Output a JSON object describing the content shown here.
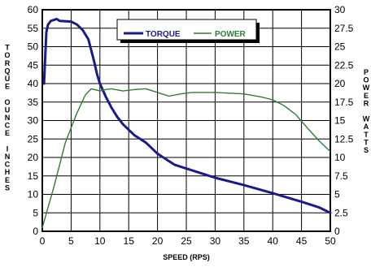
{
  "chart_data": {
    "type": "line",
    "title": "",
    "xlabel": "SPEED (RPS)",
    "ylabel_left": "TORQUE OUNCE INCHES",
    "ylabel_right": "POWER WATTS",
    "xlim": [
      0,
      50
    ],
    "ylim_left": [
      0,
      60
    ],
    "ylim_right": [
      0,
      30
    ],
    "x_ticks": [
      "0",
      "5",
      "10",
      "15",
      "20",
      "25",
      "30",
      "35",
      "40",
      "45",
      "50"
    ],
    "y_ticks_left": [
      "0",
      "5",
      "10",
      "15",
      "20",
      "25",
      "30",
      "35",
      "40",
      "45",
      "50",
      "55",
      "60"
    ],
    "y_ticks_right": [
      "0",
      "2.5",
      "5",
      "7.5",
      "10",
      "12.5",
      "15",
      "17.5",
      "20",
      "22.5",
      "25",
      "27.5",
      "30"
    ],
    "grid": true,
    "legend_position": "top-center",
    "series": [
      {
        "name": "TORQUE",
        "axis": "left",
        "color": "#1a1a8c",
        "points": [
          [
            0.3,
            40
          ],
          [
            0.7,
            54
          ],
          [
            1,
            56
          ],
          [
            1.5,
            57
          ],
          [
            2.5,
            57.5
          ],
          [
            3,
            57
          ],
          [
            5,
            56.8
          ],
          [
            6,
            56
          ],
          [
            7,
            54.5
          ],
          [
            8,
            52
          ],
          [
            8.5,
            49
          ],
          [
            9,
            46
          ],
          [
            9.5,
            42.5
          ],
          [
            10,
            40
          ],
          [
            11,
            36.5
          ],
          [
            12,
            33.5
          ],
          [
            13,
            31
          ],
          [
            14,
            29
          ],
          [
            15,
            27.5
          ],
          [
            16,
            26
          ],
          [
            17,
            25
          ],
          [
            18,
            24
          ],
          [
            19,
            22.5
          ],
          [
            20,
            21
          ],
          [
            21,
            20
          ],
          [
            22,
            19
          ],
          [
            23,
            18
          ],
          [
            25,
            17
          ],
          [
            27,
            16
          ],
          [
            30,
            14.5
          ],
          [
            35,
            12.5
          ],
          [
            40,
            10.3
          ],
          [
            45,
            8
          ],
          [
            48,
            6.5
          ],
          [
            50,
            5
          ]
        ]
      },
      {
        "name": "POWER",
        "axis": "right",
        "color": "#2e7d32",
        "points": [
          [
            0,
            0.5
          ],
          [
            2,
            6
          ],
          [
            4,
            12
          ],
          [
            6,
            16
          ],
          [
            7.5,
            18.5
          ],
          [
            8.5,
            19.3
          ],
          [
            10,
            19
          ],
          [
            11,
            19.2
          ],
          [
            12,
            19.3
          ],
          [
            14,
            19
          ],
          [
            16,
            19.2
          ],
          [
            18,
            19.3
          ],
          [
            20,
            18.8
          ],
          [
            22,
            18.3
          ],
          [
            24,
            18.6
          ],
          [
            26,
            18.8
          ],
          [
            30,
            18.8
          ],
          [
            35,
            18.6
          ],
          [
            38,
            18.2
          ],
          [
            40,
            17.8
          ],
          [
            42,
            17
          ],
          [
            44,
            15.8
          ],
          [
            46,
            14
          ],
          [
            48,
            12.3
          ],
          [
            50,
            10.8
          ]
        ]
      }
    ]
  }
}
